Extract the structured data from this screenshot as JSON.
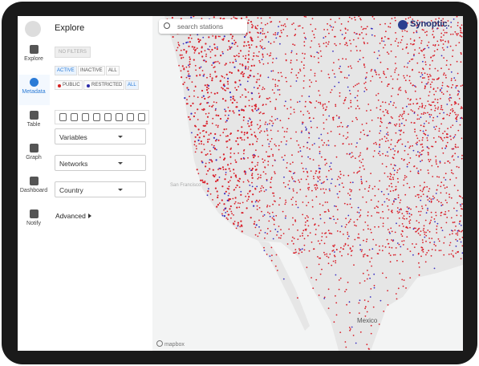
{
  "sidebar": {
    "items": [
      "Explore",
      "Metadata",
      "Table",
      "Graph",
      "Dashboard",
      "Notify"
    ]
  },
  "panel": {
    "title": "Explore",
    "no_filters": "NO FILTERS",
    "status": [
      "ACTIVE",
      "INACTIVE",
      "ALL"
    ],
    "access": [
      "PUBLIC",
      "RESTRICTED",
      "ALL"
    ],
    "dropdowns": [
      "Variables",
      "Networks",
      "Country"
    ],
    "advanced": "Advanced"
  },
  "map": {
    "search_placeholder": "search stations",
    "logo": "Synoptic.",
    "labels": [
      "San Francisco",
      "Mexico"
    ],
    "attribution": "mapbox"
  }
}
